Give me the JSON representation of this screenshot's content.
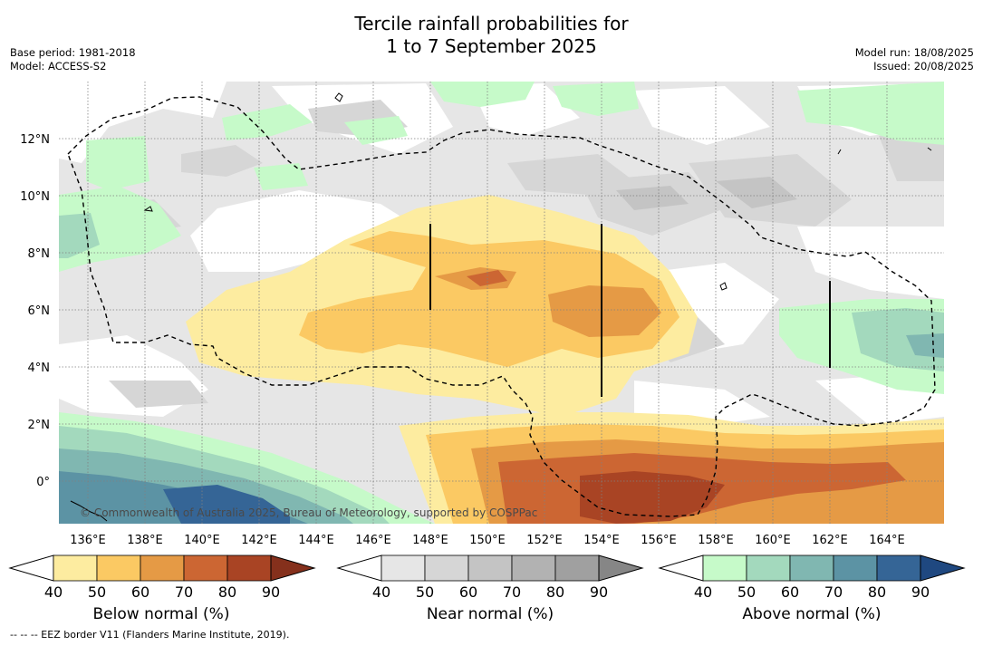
{
  "title": {
    "line1": "Tercile rainfall probabilities for",
    "line2": "1 to 7 September 2025"
  },
  "meta": {
    "base_period": "Base period: 1981-2018",
    "model": "Model: ACCESS-S2",
    "model_run": "Model run: 18/08/2025",
    "issued": "Issued: 20/08/2025"
  },
  "map": {
    "lat_ticks": [
      "12°N",
      "10°N",
      "8°N",
      "6°N",
      "4°N",
      "2°N",
      "0°"
    ],
    "lon_ticks": [
      "136°E",
      "138°E",
      "140°E",
      "142°E",
      "144°E",
      "146°E",
      "148°E",
      "150°E",
      "152°E",
      "154°E",
      "156°E",
      "158°E",
      "160°E",
      "162°E",
      "164°E"
    ],
    "copyright": "© Commonwealth of Australia 2025, Bureau of Meteorology, supported by COSPPac",
    "colors": {
      "below": [
        "#fdeca0",
        "#fbc963",
        "#e59a45",
        "#cc6633",
        "#a94424",
        "#85301c"
      ],
      "near": [
        "#e6e6e6",
        "#d6d6d6",
        "#c4c4c4",
        "#b2b2b2",
        "#a0a0a0",
        "#868686"
      ],
      "above": [
        "#c6fac9",
        "#a3d9bd",
        "#80b7b1",
        "#5c93a4",
        "#356596",
        "#1f4880"
      ]
    }
  },
  "colorbars": {
    "ticks": [
      "40",
      "50",
      "60",
      "70",
      "80",
      "90"
    ],
    "below_label": "Below normal (%)",
    "near_label": "Near normal (%)",
    "above_label": "Above normal (%)"
  },
  "footer": {
    "eez_note": "--  --  -- EEZ border V11 (Flanders Marine Institute, 2019)."
  }
}
